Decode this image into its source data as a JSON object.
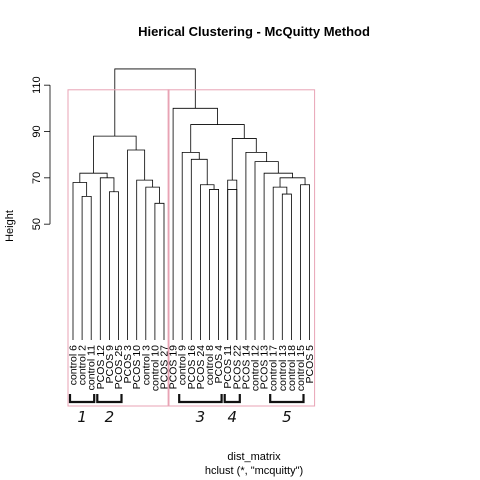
{
  "chart_data": {
    "type": "dendrogram",
    "title": "Hierical Clustering - McQuitty Method",
    "ylabel": "Height",
    "xlabel": "dist_matrix",
    "sublabel": "hclust (*, \"mcquitty\")",
    "yticks": [
      50,
      70,
      90,
      110
    ],
    "ylim": [
      0,
      120
    ],
    "leaves": [
      "control 6",
      "control 2",
      "control 11",
      "PCOS 12",
      "PCOS 9",
      "PCOS 25",
      "PCOS 3",
      "PCOS 10",
      "control 3",
      "control 10",
      "PCOS 27",
      "PCOS 19",
      "control 9",
      "PCOS 16",
      "PCOS 24",
      "control 8",
      "PCOS 4",
      "PCOS 11",
      "PCOS 22",
      "PCOS 14",
      "control 12",
      "PCOS 13",
      "control 17",
      "control 13",
      "control 18",
      "control 15",
      "PCOS 5"
    ],
    "merges": [
      {
        "a": "L2",
        "b": "L3",
        "h": 62
      },
      {
        "a": "L1",
        "b": "M1",
        "h": 68
      },
      {
        "a": "L5",
        "b": "L6",
        "h": 64
      },
      {
        "a": "L4",
        "b": "M3",
        "h": 70
      },
      {
        "a": "M2",
        "b": "M4",
        "h": 72
      },
      {
        "a": "L10",
        "b": "L11",
        "h": 59
      },
      {
        "a": "L9",
        "b": "M6",
        "h": 66
      },
      {
        "a": "L8",
        "b": "M7",
        "h": 69
      },
      {
        "a": "L7",
        "b": "M8",
        "h": 82
      },
      {
        "a": "M5",
        "b": "M9",
        "h": 88
      },
      {
        "a": "L16",
        "b": "L17",
        "h": 65
      },
      {
        "a": "L15",
        "b": "M11",
        "h": 67
      },
      {
        "a": "L14",
        "b": "M12",
        "h": 78
      },
      {
        "a": "L13",
        "b": "M13",
        "h": 81
      },
      {
        "a": "L18",
        "b": "L19",
        "h": 65
      },
      {
        "a": "L17b",
        "b": "M15",
        "h": 69
      },
      {
        "a": "L24",
        "b": "L25",
        "h": 63
      },
      {
        "a": "L23",
        "b": "M17",
        "h": 66
      },
      {
        "a": "L26",
        "b": "L27",
        "h": 67
      },
      {
        "a": "M18",
        "b": "M19",
        "h": 70
      },
      {
        "a": "L22",
        "b": "M20",
        "h": 72
      },
      {
        "a": "L21",
        "b": "M21",
        "h": 77
      },
      {
        "a": "L20",
        "b": "M22",
        "h": 81
      },
      {
        "a": "M16",
        "b": "M23",
        "h": 87
      },
      {
        "a": "M14",
        "b": "M24",
        "h": 93
      },
      {
        "a": "L12",
        "b": "M25",
        "h": 100
      },
      {
        "a": "M10",
        "b": "M26",
        "h": 117
      }
    ],
    "cluster_boxes": [
      {
        "from_leaf": 1,
        "to_leaf": 11,
        "top": 108,
        "color": "#e8a3b5"
      },
      {
        "from_leaf": 12,
        "to_leaf": 27,
        "top": 108,
        "color": "#e8a3b5"
      }
    ],
    "annotations": [
      {
        "label": "1",
        "from_leaf": 1,
        "to_leaf": 3
      },
      {
        "label": "2",
        "from_leaf": 4,
        "to_leaf": 6
      },
      {
        "label": "3",
        "from_leaf": 13,
        "to_leaf": 17
      },
      {
        "label": "4",
        "from_leaf": 18,
        "to_leaf": 19
      },
      {
        "label": "5",
        "from_leaf": 23,
        "to_leaf": 26
      }
    ]
  }
}
